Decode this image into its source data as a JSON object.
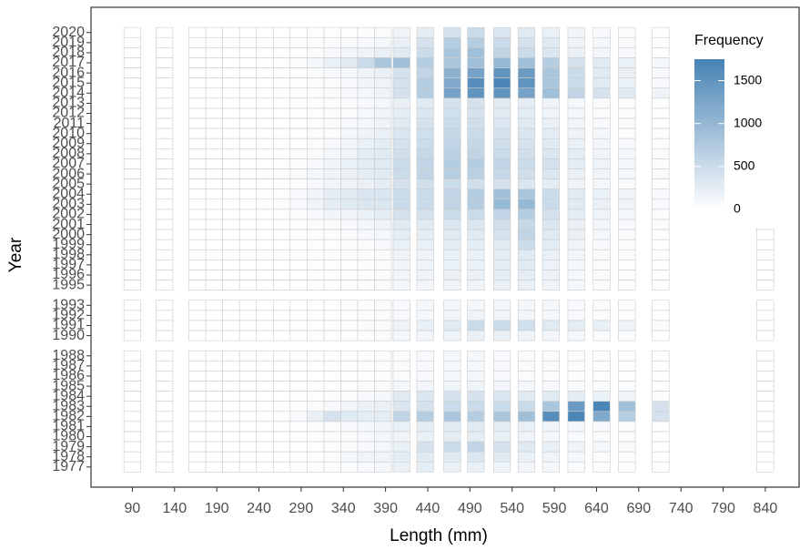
{
  "chart_data": {
    "type": "heatmap",
    "x_label": "Length (mm)",
    "y_label": "Year",
    "x": [
      90,
      128,
      167,
      187,
      207,
      227,
      247,
      267,
      287,
      307,
      327,
      347,
      367,
      387,
      409,
      437,
      469,
      497,
      528,
      557,
      586,
      616,
      646,
      676,
      716,
      840
    ],
    "y": [
      2020,
      2019,
      2018,
      2017,
      2016,
      2015,
      2014,
      2013,
      2012,
      2011,
      2010,
      2009,
      2008,
      2007,
      2006,
      2005,
      2004,
      2003,
      2002,
      2001,
      2000,
      1999,
      1998,
      1997,
      1996,
      1995,
      1993,
      1992,
      1991,
      1990,
      1988,
      1987,
      1986,
      1985,
      1984,
      1983,
      1982,
      1981,
      1980,
      1979,
      1978,
      1977
    ],
    "values": [
      [
        0,
        0,
        0,
        0,
        0,
        0,
        0,
        0,
        5,
        10,
        20,
        30,
        40,
        60,
        150,
        250,
        400,
        500,
        350,
        300,
        200,
        120,
        80,
        50,
        20,
        0
      ],
      [
        0,
        0,
        0,
        0,
        0,
        0,
        0,
        5,
        10,
        20,
        40,
        60,
        80,
        100,
        200,
        400,
        700,
        700,
        500,
        400,
        300,
        150,
        100,
        60,
        20,
        0
      ],
      [
        0,
        0,
        0,
        0,
        0,
        0,
        5,
        10,
        20,
        40,
        80,
        120,
        150,
        200,
        300,
        500,
        800,
        900,
        600,
        500,
        350,
        200,
        120,
        80,
        30,
        0
      ],
      [
        0,
        0,
        0,
        0,
        0,
        5,
        10,
        20,
        50,
        100,
        200,
        300,
        500,
        800,
        900,
        700,
        800,
        900,
        1000,
        900,
        700,
        400,
        300,
        200,
        100,
        0
      ],
      [
        0,
        0,
        0,
        0,
        0,
        0,
        5,
        10,
        20,
        40,
        80,
        100,
        150,
        200,
        400,
        600,
        1100,
        1300,
        1500,
        1400,
        800,
        500,
        300,
        200,
        80,
        0
      ],
      [
        0,
        0,
        0,
        0,
        0,
        0,
        5,
        10,
        20,
        40,
        60,
        80,
        120,
        150,
        400,
        700,
        1200,
        1600,
        1700,
        1500,
        800,
        500,
        300,
        200,
        80,
        0
      ],
      [
        0,
        0,
        0,
        0,
        0,
        0,
        5,
        10,
        20,
        30,
        50,
        80,
        100,
        150,
        400,
        700,
        1300,
        1500,
        1500,
        1300,
        900,
        600,
        400,
        300,
        150,
        0
      ],
      [
        0,
        0,
        0,
        0,
        0,
        0,
        0,
        5,
        10,
        20,
        40,
        60,
        80,
        100,
        200,
        300,
        400,
        400,
        300,
        250,
        150,
        100,
        60,
        40,
        20,
        0
      ],
      [
        0,
        0,
        0,
        0,
        0,
        0,
        0,
        5,
        10,
        20,
        40,
        60,
        90,
        120,
        250,
        350,
        450,
        400,
        300,
        250,
        150,
        100,
        60,
        40,
        20,
        0
      ],
      [
        0,
        0,
        0,
        0,
        0,
        0,
        0,
        5,
        10,
        30,
        50,
        80,
        100,
        150,
        300,
        400,
        500,
        450,
        350,
        300,
        200,
        120,
        80,
        50,
        20,
        0
      ],
      [
        0,
        0,
        0,
        0,
        0,
        0,
        5,
        10,
        20,
        40,
        60,
        100,
        150,
        200,
        350,
        450,
        550,
        500,
        400,
        350,
        250,
        150,
        100,
        60,
        30,
        0
      ],
      [
        0,
        0,
        0,
        0,
        0,
        0,
        5,
        10,
        20,
        40,
        80,
        120,
        200,
        250,
        400,
        500,
        600,
        550,
        450,
        400,
        300,
        200,
        120,
        80,
        40,
        0
      ],
      [
        0,
        0,
        0,
        0,
        0,
        0,
        5,
        10,
        30,
        60,
        100,
        150,
        250,
        300,
        450,
        550,
        650,
        600,
        500,
        450,
        350,
        250,
        150,
        100,
        50,
        0
      ],
      [
        0,
        0,
        0,
        0,
        0,
        0,
        5,
        20,
        40,
        80,
        120,
        200,
        250,
        300,
        500,
        600,
        700,
        700,
        600,
        500,
        400,
        250,
        150,
        100,
        50,
        0
      ],
      [
        0,
        0,
        0,
        0,
        0,
        0,
        10,
        30,
        60,
        100,
        150,
        200,
        250,
        300,
        500,
        600,
        700,
        650,
        550,
        450,
        350,
        200,
        150,
        100,
        50,
        0
      ],
      [
        0,
        0,
        0,
        0,
        0,
        0,
        5,
        20,
        40,
        80,
        120,
        150,
        200,
        250,
        400,
        450,
        500,
        450,
        400,
        350,
        250,
        150,
        100,
        60,
        30,
        0
      ],
      [
        0,
        0,
        0,
        0,
        0,
        5,
        10,
        30,
        80,
        150,
        250,
        300,
        350,
        350,
        500,
        500,
        600,
        700,
        900,
        800,
        500,
        300,
        200,
        150,
        80,
        0
      ],
      [
        0,
        0,
        0,
        0,
        0,
        5,
        10,
        30,
        80,
        150,
        250,
        300,
        350,
        350,
        500,
        500,
        600,
        700,
        1000,
        1000,
        500,
        300,
        200,
        150,
        80,
        0
      ],
      [
        0,
        0,
        0,
        0,
        0,
        0,
        5,
        20,
        40,
        80,
        120,
        150,
        200,
        250,
        400,
        400,
        500,
        500,
        600,
        700,
        400,
        250,
        150,
        100,
        50,
        0
      ],
      [
        0,
        0,
        0,
        0,
        0,
        0,
        5,
        10,
        20,
        40,
        60,
        80,
        100,
        150,
        300,
        300,
        350,
        350,
        450,
        550,
        350,
        200,
        120,
        80,
        40,
        0
      ],
      [
        0,
        0,
        0,
        0,
        0,
        0,
        0,
        5,
        10,
        20,
        40,
        60,
        80,
        100,
        250,
        250,
        300,
        300,
        400,
        600,
        300,
        200,
        100,
        60,
        30,
        0
      ],
      [
        0,
        0,
        0,
        0,
        0,
        0,
        0,
        5,
        10,
        20,
        30,
        40,
        60,
        80,
        200,
        200,
        250,
        250,
        300,
        500,
        250,
        150,
        80,
        50,
        20,
        0
      ],
      [
        0,
        0,
        0,
        0,
        0,
        0,
        0,
        0,
        5,
        10,
        20,
        30,
        40,
        60,
        150,
        150,
        200,
        200,
        250,
        300,
        200,
        120,
        60,
        40,
        20,
        0
      ],
      [
        0,
        0,
        0,
        0,
        0,
        0,
        0,
        0,
        5,
        10,
        20,
        30,
        40,
        50,
        120,
        150,
        200,
        200,
        250,
        300,
        180,
        100,
        60,
        30,
        10,
        0
      ],
      [
        0,
        0,
        0,
        0,
        0,
        0,
        0,
        0,
        5,
        10,
        20,
        30,
        40,
        50,
        120,
        150,
        200,
        200,
        250,
        250,
        180,
        100,
        60,
        30,
        10,
        0
      ],
      [
        0,
        0,
        0,
        0,
        0,
        0,
        0,
        0,
        5,
        10,
        20,
        30,
        40,
        50,
        100,
        120,
        150,
        150,
        200,
        200,
        150,
        100,
        60,
        30,
        10,
        0
      ],
      [
        0,
        0,
        0,
        0,
        0,
        0,
        0,
        0,
        5,
        10,
        20,
        30,
        40,
        50,
        80,
        100,
        100,
        100,
        120,
        100,
        100,
        80,
        50,
        30,
        10,
        0
      ],
      [
        0,
        0,
        0,
        0,
        0,
        0,
        0,
        0,
        5,
        10,
        20,
        30,
        40,
        50,
        80,
        100,
        120,
        150,
        150,
        120,
        100,
        80,
        50,
        30,
        10,
        0
      ],
      [
        0,
        0,
        0,
        0,
        0,
        0,
        0,
        5,
        10,
        20,
        30,
        40,
        50,
        60,
        150,
        200,
        300,
        500,
        500,
        450,
        300,
        250,
        200,
        150,
        50,
        0
      ],
      [
        0,
        0,
        0,
        0,
        0,
        0,
        0,
        0,
        5,
        10,
        20,
        30,
        40,
        50,
        100,
        120,
        150,
        200,
        200,
        150,
        120,
        100,
        60,
        40,
        20,
        0
      ],
      [
        0,
        0,
        0,
        0,
        0,
        0,
        0,
        0,
        0,
        5,
        10,
        20,
        30,
        40,
        60,
        80,
        100,
        100,
        80,
        60,
        50,
        40,
        30,
        20,
        10,
        0
      ],
      [
        0,
        0,
        0,
        0,
        0,
        0,
        0,
        0,
        0,
        5,
        10,
        20,
        30,
        40,
        60,
        80,
        100,
        100,
        80,
        60,
        50,
        40,
        30,
        20,
        10,
        0
      ],
      [
        0,
        0,
        0,
        0,
        0,
        0,
        0,
        0,
        0,
        5,
        10,
        20,
        30,
        40,
        60,
        80,
        100,
        100,
        80,
        60,
        50,
        40,
        30,
        20,
        10,
        0
      ],
      [
        0,
        0,
        0,
        0,
        0,
        0,
        0,
        0,
        5,
        10,
        20,
        30,
        40,
        50,
        100,
        120,
        150,
        150,
        120,
        100,
        80,
        60,
        40,
        30,
        10,
        0
      ],
      [
        0,
        0,
        0,
        0,
        0,
        0,
        0,
        5,
        10,
        20,
        40,
        60,
        80,
        100,
        300,
        350,
        400,
        400,
        350,
        300,
        300,
        250,
        200,
        150,
        60,
        0
      ],
      [
        0,
        0,
        0,
        0,
        0,
        0,
        5,
        10,
        20,
        40,
        80,
        120,
        200,
        200,
        350,
        400,
        500,
        500,
        500,
        500,
        800,
        1400,
        1700,
        900,
        400,
        0
      ],
      [
        0,
        0,
        0,
        0,
        0,
        0,
        10,
        30,
        80,
        200,
        400,
        300,
        250,
        250,
        600,
        700,
        800,
        700,
        800,
        900,
        1600,
        1700,
        1200,
        700,
        400,
        0
      ],
      [
        0,
        0,
        0,
        0,
        0,
        0,
        5,
        10,
        20,
        40,
        60,
        80,
        100,
        120,
        200,
        250,
        300,
        300,
        250,
        200,
        150,
        100,
        80,
        60,
        20,
        0
      ],
      [
        0,
        0,
        0,
        0,
        0,
        0,
        0,
        5,
        10,
        20,
        40,
        60,
        80,
        100,
        150,
        200,
        250,
        250,
        200,
        150,
        100,
        80,
        60,
        40,
        10,
        0
      ],
      [
        0,
        0,
        0,
        0,
        0,
        0,
        0,
        5,
        10,
        20,
        40,
        60,
        80,
        100,
        200,
        400,
        500,
        600,
        400,
        300,
        200,
        150,
        100,
        60,
        20,
        0
      ],
      [
        0,
        0,
        0,
        0,
        0,
        0,
        0,
        5,
        10,
        20,
        50,
        100,
        150,
        150,
        250,
        300,
        300,
        350,
        300,
        200,
        150,
        100,
        60,
        40,
        10,
        0
      ],
      [
        0,
        0,
        0,
        0,
        0,
        0,
        0,
        5,
        10,
        20,
        40,
        60,
        80,
        100,
        200,
        250,
        200,
        200,
        150,
        120,
        100,
        60,
        40,
        20,
        10,
        0
      ]
    ],
    "xlim": [
      41,
      880
    ],
    "ylim": [
      1975,
      2022.5
    ],
    "xticks": [
      90,
      140,
      190,
      240,
      290,
      340,
      390,
      440,
      490,
      540,
      590,
      640,
      690,
      740,
      790,
      840
    ],
    "yticks": [
      2020,
      2019,
      2018,
      2017,
      2016,
      2015,
      2014,
      2013,
      2012,
      2011,
      2010,
      2009,
      2008,
      2007,
      2006,
      2005,
      2004,
      2003,
      2002,
      2001,
      2000,
      1999,
      1998,
      1997,
      1996,
      1995,
      1993,
      1992,
      1991,
      1990,
      1988,
      1987,
      1986,
      1985,
      1984,
      1983,
      1982,
      1981,
      1980,
      1979,
      1978,
      1977
    ],
    "legend": {
      "title": "Frequency",
      "lim": [
        0,
        1750
      ],
      "ticks": [
        0,
        500,
        1000,
        1500
      ],
      "low": "#ffffff",
      "high": "#4682b4"
    }
  }
}
